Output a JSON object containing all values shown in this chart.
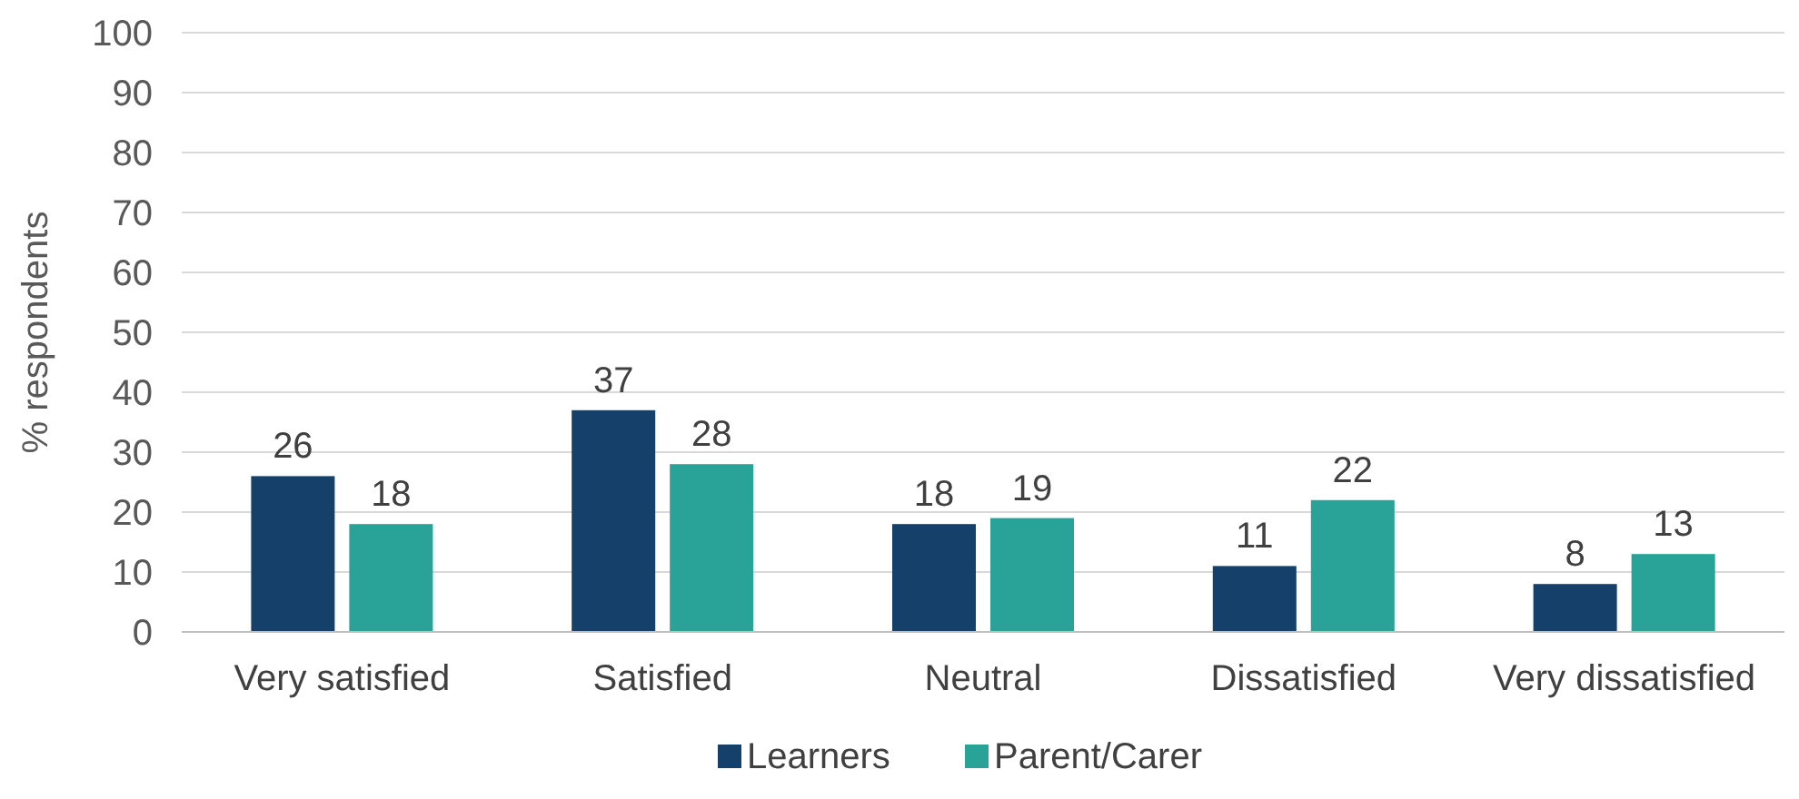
{
  "chart_data": {
    "type": "bar",
    "ylabel": "% respondents",
    "categories": [
      "Very satisfied",
      "Satisfied",
      "Neutral",
      "Dissatisfied",
      "Very dissatisfied"
    ],
    "series": [
      {
        "name": "Learners",
        "color": "#15406a",
        "values": [
          26,
          37,
          18,
          11,
          8
        ]
      },
      {
        "name": "Parent/Carer",
        "color": "#29a398",
        "values": [
          18,
          28,
          19,
          22,
          13
        ]
      }
    ],
    "ylim": [
      0,
      100
    ],
    "yticks": [
      0,
      10,
      20,
      30,
      40,
      50,
      60,
      70,
      80,
      90,
      100
    ],
    "grid": "y",
    "legend": "bottom",
    "data_labels": true
  }
}
